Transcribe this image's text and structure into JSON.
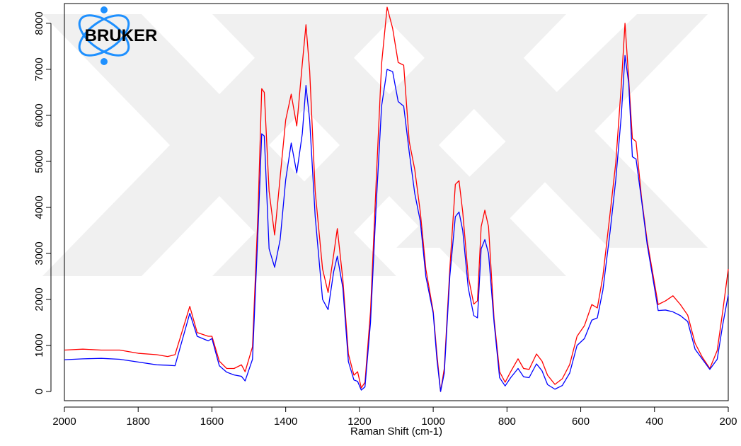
{
  "chart_data": {
    "type": "line",
    "logo": "BRUKER",
    "xlabel": "Raman Shift (cm-1)",
    "xlim": [
      2000,
      200
    ],
    "xticks": [
      2000,
      1800,
      1600,
      1400,
      1200,
      1000,
      800,
      600,
      400,
      200
    ],
    "ylim": [
      -200,
      8430
    ],
    "yticks": [
      0,
      1000,
      2000,
      3000,
      4000,
      5000,
      6000,
      7000,
      8000
    ],
    "x": [
      2000,
      1950,
      1900,
      1850,
      1800,
      1750,
      1720,
      1700,
      1660,
      1640,
      1610,
      1600,
      1580,
      1560,
      1540,
      1520,
      1510,
      1490,
      1475,
      1465,
      1458,
      1445,
      1430,
      1415,
      1400,
      1385,
      1370,
      1355,
      1345,
      1335,
      1320,
      1300,
      1285,
      1270,
      1260,
      1245,
      1230,
      1215,
      1205,
      1195,
      1185,
      1170,
      1155,
      1140,
      1125,
      1110,
      1095,
      1080,
      1065,
      1050,
      1035,
      1020,
      1000,
      990,
      980,
      970,
      955,
      940,
      930,
      920,
      905,
      890,
      880,
      870,
      860,
      850,
      835,
      820,
      805,
      790,
      770,
      755,
      740,
      720,
      705,
      690,
      670,
      650,
      630,
      610,
      590,
      570,
      555,
      540,
      520,
      505,
      490,
      480,
      470,
      460,
      450,
      435,
      420,
      400,
      390,
      370,
      350,
      330,
      310,
      290,
      270,
      250,
      230,
      215,
      200
    ],
    "series": [
      {
        "color": "#ff0000",
        "values": [
          900,
          920,
          900,
          900,
          830,
          800,
          760,
          800,
          1850,
          1280,
          1200,
          1200,
          660,
          500,
          500,
          580,
          430,
          970,
          3900,
          6580,
          6500,
          4350,
          3400,
          4660,
          5900,
          6460,
          5770,
          7120,
          7970,
          6970,
          4350,
          2660,
          2150,
          2970,
          3540,
          2430,
          815,
          354,
          430,
          77,
          200,
          1740,
          4500,
          7120,
          8350,
          7890,
          7150,
          7090,
          5430,
          4820,
          3900,
          2660,
          1740,
          815,
          0,
          500,
          2660,
          4500,
          4580,
          3900,
          2500,
          1900,
          1970,
          3580,
          3940,
          3580,
          1580,
          430,
          200,
          430,
          710,
          500,
          480,
          815,
          660,
          354,
          154,
          277,
          585,
          1200,
          1430,
          1890,
          1815,
          2500,
          3900,
          4970,
          6660,
          8000,
          6800,
          5500,
          5430,
          4200,
          3280,
          2350,
          1890,
          1970,
          2080,
          1890,
          1660,
          1050,
          740,
          500,
          890,
          1740,
          2660
        ]
      },
      {
        "color": "#0000ff",
        "values": [
          690,
          710,
          720,
          700,
          640,
          580,
          570,
          560,
          1700,
          1200,
          1100,
          1150,
          560,
          420,
          360,
          330,
          230,
          700,
          3500,
          5600,
          5550,
          3100,
          2700,
          3300,
          4600,
          5400,
          4750,
          5600,
          6650,
          5900,
          3800,
          2000,
          1780,
          2600,
          2940,
          2250,
          650,
          250,
          220,
          30,
          100,
          1500,
          4000,
          6200,
          7000,
          6950,
          6300,
          6200,
          5200,
          4300,
          3700,
          2500,
          1700,
          700,
          0,
          400,
          2500,
          3800,
          3900,
          3500,
          2250,
          1650,
          1600,
          3100,
          3300,
          3000,
          1500,
          300,
          120,
          300,
          500,
          320,
          300,
          600,
          450,
          150,
          50,
          130,
          400,
          1000,
          1150,
          1550,
          1600,
          2200,
          3500,
          4600,
          6000,
          7300,
          6700,
          5100,
          5050,
          4150,
          3200,
          2250,
          1760,
          1770,
          1730,
          1650,
          1520,
          920,
          700,
          480,
          700,
          1450,
          2100
        ]
      }
    ]
  }
}
